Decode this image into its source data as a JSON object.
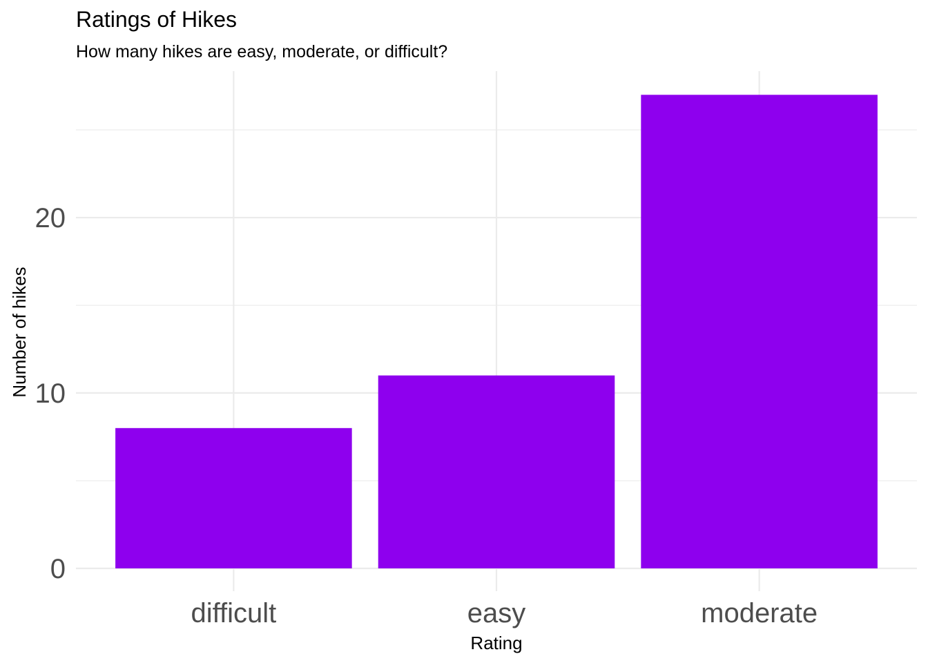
{
  "chart_data": {
    "type": "bar",
    "title": "Ratings of Hikes",
    "subtitle": "How many hikes are easy, moderate, or difficult?",
    "xlabel": "Rating",
    "ylabel": "Number of hikes",
    "categories": [
      "difficult",
      "easy",
      "moderate"
    ],
    "values": [
      8,
      11,
      27
    ],
    "ylim": [
      0,
      28.35
    ],
    "y_ticks": [
      0,
      10,
      20
    ],
    "y_minor_ticks": [
      5,
      15,
      25
    ],
    "bar_color": "#8e00ee",
    "grid": true,
    "legend": "none"
  }
}
